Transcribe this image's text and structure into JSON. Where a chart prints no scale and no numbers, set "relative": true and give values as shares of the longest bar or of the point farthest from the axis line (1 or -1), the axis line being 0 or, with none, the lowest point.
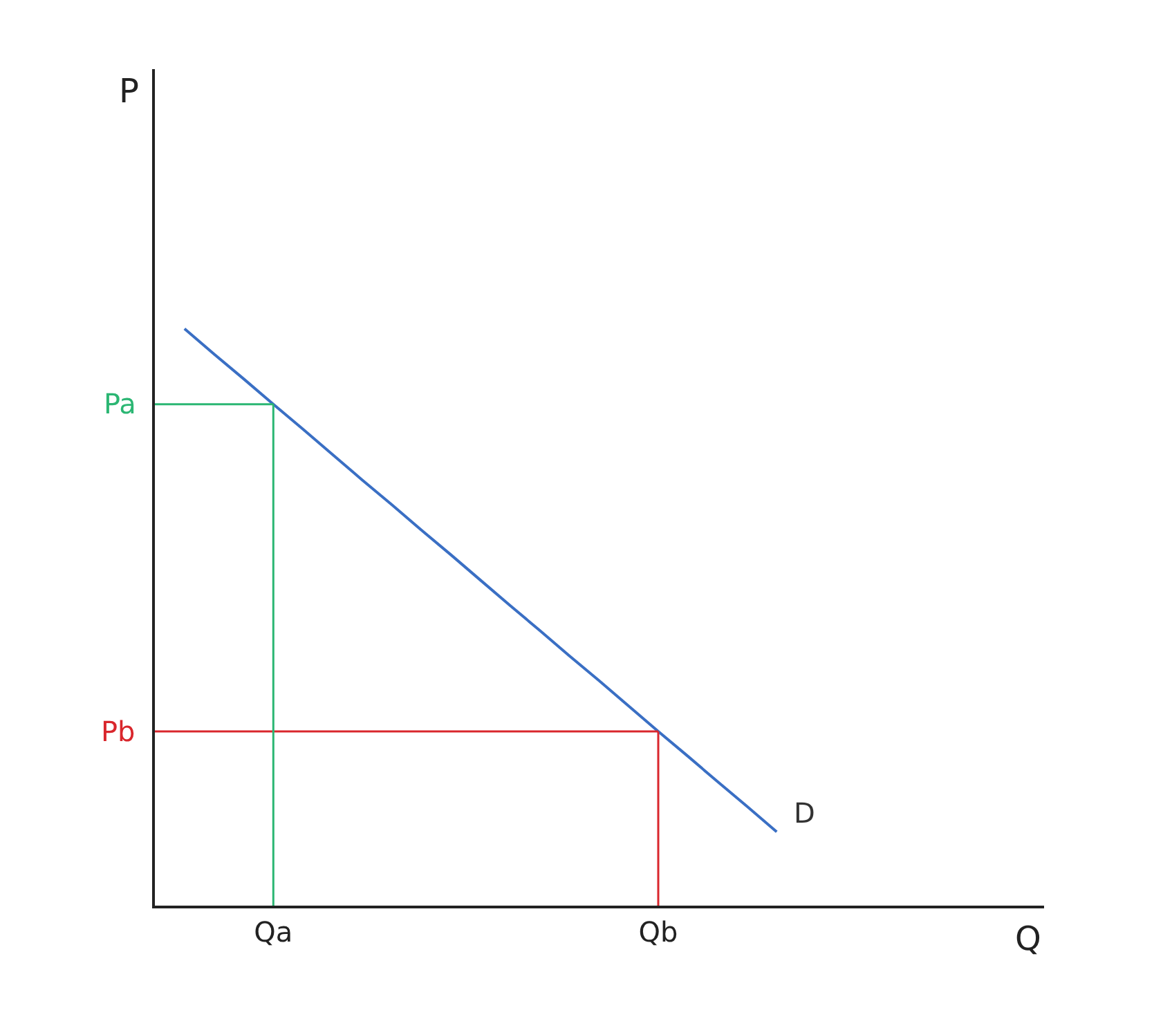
{
  "chart_data": {
    "type": "line",
    "annotations": [
      "P",
      "Q"
    ],
    "relative": true,
    "legend": false,
    "marker": "none",
    "categories": [
      null,
      null,
      null,
      null,
      "Qa",
      null,
      null,
      null,
      null,
      null,
      null,
      null,
      null,
      null,
      null,
      null,
      null,
      "Qb",
      null,
      null,
      null,
      null
    ],
    "series": [
      {
        "name": "D",
        "color": "#3a6fc4",
        "values": [
          null,
          1,
          0.956,
          0.913,
          0.869,
          0.826,
          0.782,
          0.738,
          0.695,
          0.651,
          0.608,
          0.564,
          0.52,
          0.477,
          0.433,
          0.39,
          0.346,
          0.302,
          0.259,
          0.215,
          0.172,
          0.128
        ]
      }
    ],
    "ref_lines": [
      {
        "axis": "y",
        "value": 0.869,
        "label": "Pa",
        "color": "#2bb673"
      },
      {
        "axis": "y",
        "value": 0.302,
        "label": "Pb",
        "color": "#d9262c"
      },
      {
        "axis": "x",
        "value": "Qa",
        "color": "#2bb673"
      },
      {
        "axis": "x",
        "value": "Qb",
        "color": "#d9262c"
      }
    ]
  }
}
